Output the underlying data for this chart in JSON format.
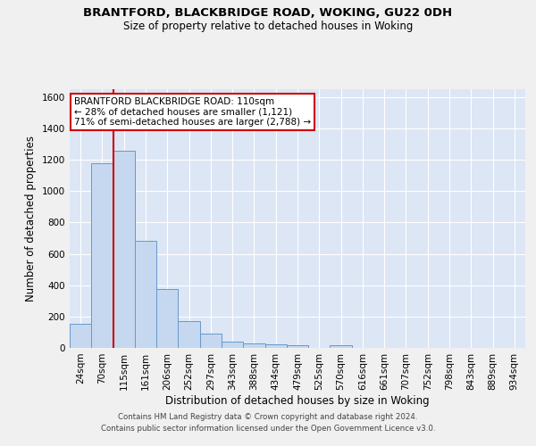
{
  "title1": "BRANTFORD, BLACKBRIDGE ROAD, WOKING, GU22 0DH",
  "title2": "Size of property relative to detached houses in Woking",
  "xlabel": "Distribution of detached houses by size in Woking",
  "ylabel": "Number of detached properties",
  "categories": [
    "24sqm",
    "70sqm",
    "115sqm",
    "161sqm",
    "206sqm",
    "252sqm",
    "297sqm",
    "343sqm",
    "388sqm",
    "434sqm",
    "479sqm",
    "525sqm",
    "570sqm",
    "616sqm",
    "661sqm",
    "707sqm",
    "752sqm",
    "798sqm",
    "843sqm",
    "889sqm",
    "934sqm"
  ],
  "values": [
    155,
    1175,
    1260,
    680,
    375,
    170,
    90,
    38,
    28,
    20,
    15,
    0,
    15,
    0,
    0,
    0,
    0,
    0,
    0,
    0,
    0
  ],
  "bar_color": "#c5d8f0",
  "bar_edge_color": "#6699cc",
  "vline_color": "#cc0000",
  "annotation_text": "BRANTFORD BLACKBRIDGE ROAD: 110sqm\n← 28% of detached houses are smaller (1,121)\n71% of semi-detached houses are larger (2,788) →",
  "annotation_box_color": "white",
  "annotation_box_edge_color": "#cc0000",
  "ylim": [
    0,
    1650
  ],
  "yticks": [
    0,
    200,
    400,
    600,
    800,
    1000,
    1200,
    1400,
    1600
  ],
  "background_color": "#dce6f5",
  "grid_color": "#ffffff",
  "fig_facecolor": "#f0f0f0",
  "footer1": "Contains HM Land Registry data © Crown copyright and database right 2024.",
  "footer2": "Contains public sector information licensed under the Open Government Licence v3.0."
}
